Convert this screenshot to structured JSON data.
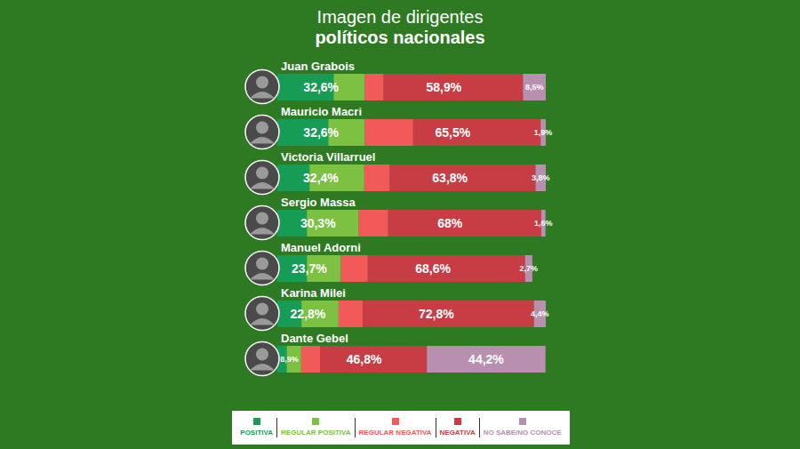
{
  "chart_data": {
    "type": "bar",
    "orientation": "horizontal",
    "stacked": true,
    "title": "Imagen de dirigentes",
    "subtitle": "políticos nacionales",
    "categories": [
      "Juan Grabois",
      "Mauricio Macri",
      "Victoria Villarruel",
      "Sergio Massa",
      "Manuel Adorni",
      "Karina Milei",
      "Dante Gebel"
    ],
    "series": [
      {
        "name": "POSITIVA",
        "color": "#169c55",
        "values": [
          21,
          19,
          12,
          11,
          11,
          9,
          3.5
        ]
      },
      {
        "name": "REGULAR POSITIVA",
        "color": "#7cc142",
        "values": [
          11.6,
          13.6,
          20.4,
          19.3,
          12.7,
          13.8,
          5.4
        ]
      },
      {
        "name": "REGULAR NEGATIVA",
        "color": "#f25a5a",
        "values": [
          7,
          18,
          9.5,
          11,
          10,
          9,
          7
        ]
      },
      {
        "name": "NEGATIVA",
        "color": "#c83c44",
        "values": [
          51.9,
          47.5,
          54.3,
          57,
          58.6,
          63.8,
          39.8
        ]
      },
      {
        "name": "NO SABE/NO CONOCE",
        "color": "#b98fb0",
        "values": [
          8.5,
          1.9,
          3.8,
          1.6,
          2.7,
          4.4,
          44.2
        ]
      }
    ],
    "totals": [
      {
        "series": [
          "POSITIVA",
          "REGULAR POSITIVA"
        ],
        "values": [
          32.6,
          32.6,
          32.4,
          30.3,
          23.7,
          22.8,
          8.9
        ],
        "value_labels": [
          "32,6%",
          "32,6%",
          "32,4%",
          "30,3%",
          "23,7%",
          "22,8%",
          "8,9%"
        ]
      },
      {
        "series": [
          "REGULAR NEGATIVA",
          "NEGATIVA"
        ],
        "values": [
          58.9,
          65.5,
          63.8,
          68,
          68.6,
          72.8,
          46.8
        ],
        "value_labels": [
          "58,9%",
          "65,5%",
          "63,8%",
          "68%",
          "68,6%",
          "72,8%",
          "46,8%"
        ]
      },
      {
        "series": [
          "NO SABE/NO CONOCE"
        ],
        "values": [
          8.5,
          1.9,
          3.8,
          1.6,
          2.7,
          4.4,
          44.2
        ],
        "value_labels": [
          "8,5%",
          "1,9%",
          "3,8%",
          "1,6%",
          "2,7%",
          "4,4%",
          "44,2%"
        ]
      }
    ],
    "xlim": [
      0,
      100
    ],
    "tick_labels": false,
    "grid": false,
    "legend": "bottom"
  }
}
